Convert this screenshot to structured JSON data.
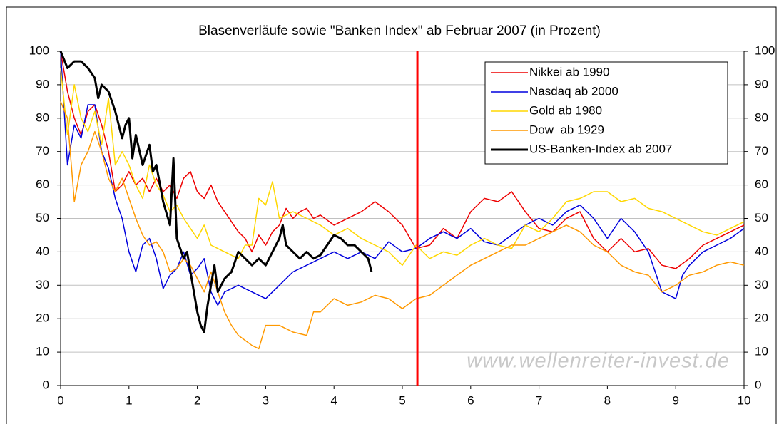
{
  "chart_data": {
    "type": "line",
    "title": "Blasenverläufe sowie \"Banken Index\" ab Februar 2007 (in Prozent)",
    "watermark": "www.wellenreiter-invest.de",
    "xlim": [
      0,
      10
    ],
    "xticks": [
      0,
      1,
      2,
      3,
      4,
      5,
      6,
      7,
      8,
      9,
      10
    ],
    "ylim": [
      0,
      100
    ],
    "yticks": [
      0,
      10,
      20,
      30,
      40,
      50,
      60,
      70,
      80,
      90,
      100
    ],
    "y2lim": [
      0,
      100
    ],
    "y2ticks": [
      0,
      10,
      20,
      30,
      40,
      50,
      60,
      70,
      80,
      90,
      100
    ],
    "grid": true,
    "legend": "top-right",
    "marker_x": 5.22,
    "marker_color": "#ff0000",
    "series": [
      {
        "name": "Nikkei ab 1990",
        "color": "#ee0000",
        "width": 1.5,
        "x": [
          0,
          0.1,
          0.2,
          0.3,
          0.4,
          0.5,
          0.6,
          0.7,
          0.8,
          0.9,
          1.0,
          1.1,
          1.2,
          1.3,
          1.4,
          1.5,
          1.6,
          1.7,
          1.8,
          1.9,
          2.0,
          2.1,
          2.2,
          2.3,
          2.4,
          2.6,
          2.7,
          2.8,
          2.9,
          3.0,
          3.1,
          3.2,
          3.3,
          3.4,
          3.5,
          3.6,
          3.7,
          3.8,
          4.0,
          4.2,
          4.4,
          4.6,
          4.8,
          5.0,
          5.2,
          5.4,
          5.6,
          5.8,
          6.0,
          6.2,
          6.4,
          6.6,
          6.8,
          7.0,
          7.2,
          7.4,
          7.6,
          7.8,
          8.0,
          8.2,
          8.4,
          8.6,
          8.8,
          9.0,
          9.2,
          9.4,
          9.6,
          9.8,
          10
        ],
        "values": [
          100,
          88,
          80,
          75,
          82,
          84,
          78,
          70,
          58,
          60,
          64,
          60,
          62,
          58,
          62,
          58,
          60,
          56,
          62,
          64,
          58,
          56,
          60,
          55,
          52,
          46,
          44,
          40,
          45,
          42,
          46,
          48,
          53,
          50,
          52,
          53,
          50,
          51,
          48,
          50,
          52,
          55,
          52,
          48,
          41,
          42,
          47,
          44,
          52,
          56,
          55,
          58,
          52,
          47,
          46,
          50,
          52,
          44,
          40,
          44,
          40,
          41,
          36,
          35,
          38,
          42,
          44,
          46,
          48
        ]
      },
      {
        "name": "Nasdaq ab 2000",
        "color": "#0000dd",
        "width": 1.5,
        "x": [
          0,
          0.1,
          0.2,
          0.3,
          0.4,
          0.5,
          0.6,
          0.7,
          0.8,
          0.9,
          1.0,
          1.1,
          1.2,
          1.3,
          1.4,
          1.5,
          1.6,
          1.7,
          1.8,
          1.9,
          2.0,
          2.1,
          2.2,
          2.3,
          2.4,
          2.6,
          2.8,
          3.0,
          3.2,
          3.4,
          3.6,
          3.8,
          4.0,
          4.2,
          4.4,
          4.6,
          4.8,
          5.0,
          5.2,
          5.4,
          5.6,
          5.8,
          6.0,
          6.2,
          6.4,
          6.6,
          6.8,
          7.0,
          7.2,
          7.4,
          7.6,
          7.8,
          8.0,
          8.2,
          8.4,
          8.6,
          8.8,
          9.0,
          9.1,
          9.2,
          9.4,
          9.6,
          9.8,
          10
        ],
        "values": [
          100,
          66,
          78,
          74,
          84,
          84,
          70,
          65,
          56,
          50,
          40,
          34,
          42,
          44,
          38,
          29,
          33,
          35,
          40,
          33,
          35,
          38,
          28,
          24,
          28,
          30,
          28,
          26,
          30,
          34,
          36,
          38,
          40,
          38,
          40,
          38,
          43,
          40,
          41,
          44,
          46,
          44,
          47,
          43,
          42,
          45,
          48,
          50,
          48,
          52,
          54,
          50,
          44,
          50,
          46,
          40,
          28,
          26,
          33,
          36,
          40,
          42,
          44,
          47
        ]
      },
      {
        "name": "Gold ab 1980",
        "color": "#ffd700",
        "width": 1.5,
        "x": [
          0,
          0.1,
          0.2,
          0.3,
          0.4,
          0.5,
          0.6,
          0.7,
          0.8,
          0.9,
          1.0,
          1.1,
          1.2,
          1.3,
          1.4,
          1.5,
          1.6,
          1.7,
          1.8,
          1.9,
          2.0,
          2.1,
          2.2,
          2.4,
          2.6,
          2.7,
          2.8,
          2.9,
          3.0,
          3.1,
          3.2,
          3.4,
          3.6,
          3.8,
          4.0,
          4.2,
          4.4,
          4.6,
          4.8,
          5.0,
          5.2,
          5.4,
          5.6,
          5.8,
          6.0,
          6.2,
          6.4,
          6.6,
          6.8,
          7.0,
          7.2,
          7.4,
          7.6,
          7.8,
          8.0,
          8.2,
          8.4,
          8.6,
          8.8,
          9.0,
          9.2,
          9.4,
          9.6,
          9.8,
          10
        ],
        "values": [
          95,
          75,
          90,
          80,
          76,
          82,
          72,
          86,
          66,
          70,
          66,
          60,
          56,
          66,
          60,
          57,
          52,
          54,
          50,
          47,
          44,
          48,
          42,
          40,
          38,
          42,
          42,
          56,
          54,
          61,
          50,
          52,
          50,
          48,
          45,
          47,
          44,
          42,
          40,
          36,
          42,
          38,
          40,
          39,
          42,
          44,
          42,
          41,
          48,
          46,
          50,
          55,
          56,
          58,
          58,
          55,
          56,
          53,
          52,
          50,
          48,
          46,
          45,
          47,
          49
        ]
      },
      {
        "name": "Dow  ab 1929",
        "color": "#ff9900",
        "width": 1.5,
        "x": [
          0,
          0.1,
          0.2,
          0.3,
          0.4,
          0.5,
          0.6,
          0.7,
          0.8,
          0.9,
          1.0,
          1.1,
          1.2,
          1.3,
          1.4,
          1.5,
          1.6,
          1.7,
          1.8,
          1.9,
          2.0,
          2.1,
          2.2,
          2.3,
          2.4,
          2.5,
          2.6,
          2.8,
          2.9,
          3.0,
          3.2,
          3.4,
          3.6,
          3.7,
          3.8,
          4.0,
          4.2,
          4.4,
          4.6,
          4.8,
          5.0,
          5.2,
          5.4,
          5.6,
          5.8,
          6.0,
          6.2,
          6.4,
          6.6,
          6.8,
          7.0,
          7.2,
          7.4,
          7.6,
          7.8,
          8.0,
          8.2,
          8.4,
          8.6,
          8.8,
          9.0,
          9.2,
          9.4,
          9.6,
          9.8,
          10
        ],
        "values": [
          85,
          80,
          55,
          66,
          70,
          76,
          70,
          62,
          58,
          62,
          56,
          50,
          45,
          42,
          43,
          40,
          34,
          35,
          38,
          36,
          32,
          28,
          34,
          28,
          22,
          18,
          15,
          12,
          11,
          18,
          18,
          16,
          15,
          22,
          22,
          26,
          24,
          25,
          27,
          26,
          23,
          26,
          27,
          30,
          33,
          36,
          38,
          40,
          42,
          42,
          44,
          46,
          48,
          46,
          42,
          40,
          36,
          34,
          33,
          28,
          30,
          33,
          34,
          36,
          37,
          36
        ]
      },
      {
        "name": "US-Banken-Index ab 2007",
        "color": "#000000",
        "width": 3,
        "x": [
          0,
          0.1,
          0.2,
          0.3,
          0.4,
          0.5,
          0.55,
          0.6,
          0.7,
          0.8,
          0.9,
          0.95,
          1.0,
          1.05,
          1.1,
          1.2,
          1.3,
          1.35,
          1.4,
          1.5,
          1.6,
          1.65,
          1.7,
          1.8,
          1.85,
          1.9,
          2.0,
          2.05,
          2.1,
          2.15,
          2.2,
          2.25,
          2.3,
          2.4,
          2.5,
          2.6,
          2.7,
          2.8,
          2.9,
          3.0,
          3.1,
          3.2,
          3.25,
          3.3,
          3.4,
          3.5,
          3.6,
          3.7,
          3.8,
          3.9,
          4.0,
          4.1,
          4.2,
          4.3,
          4.4,
          4.5,
          4.55
        ],
        "values": [
          100,
          95,
          97,
          97,
          95,
          92,
          86,
          90,
          88,
          82,
          74,
          78,
          80,
          68,
          75,
          66,
          72,
          64,
          66,
          55,
          48,
          68,
          44,
          38,
          40,
          34,
          22,
          18,
          16,
          24,
          30,
          36,
          28,
          32,
          34,
          40,
          38,
          36,
          38,
          36,
          40,
          44,
          48,
          42,
          40,
          38,
          40,
          38,
          39,
          42,
          45,
          44,
          42,
          42,
          40,
          38,
          34
        ]
      }
    ]
  }
}
